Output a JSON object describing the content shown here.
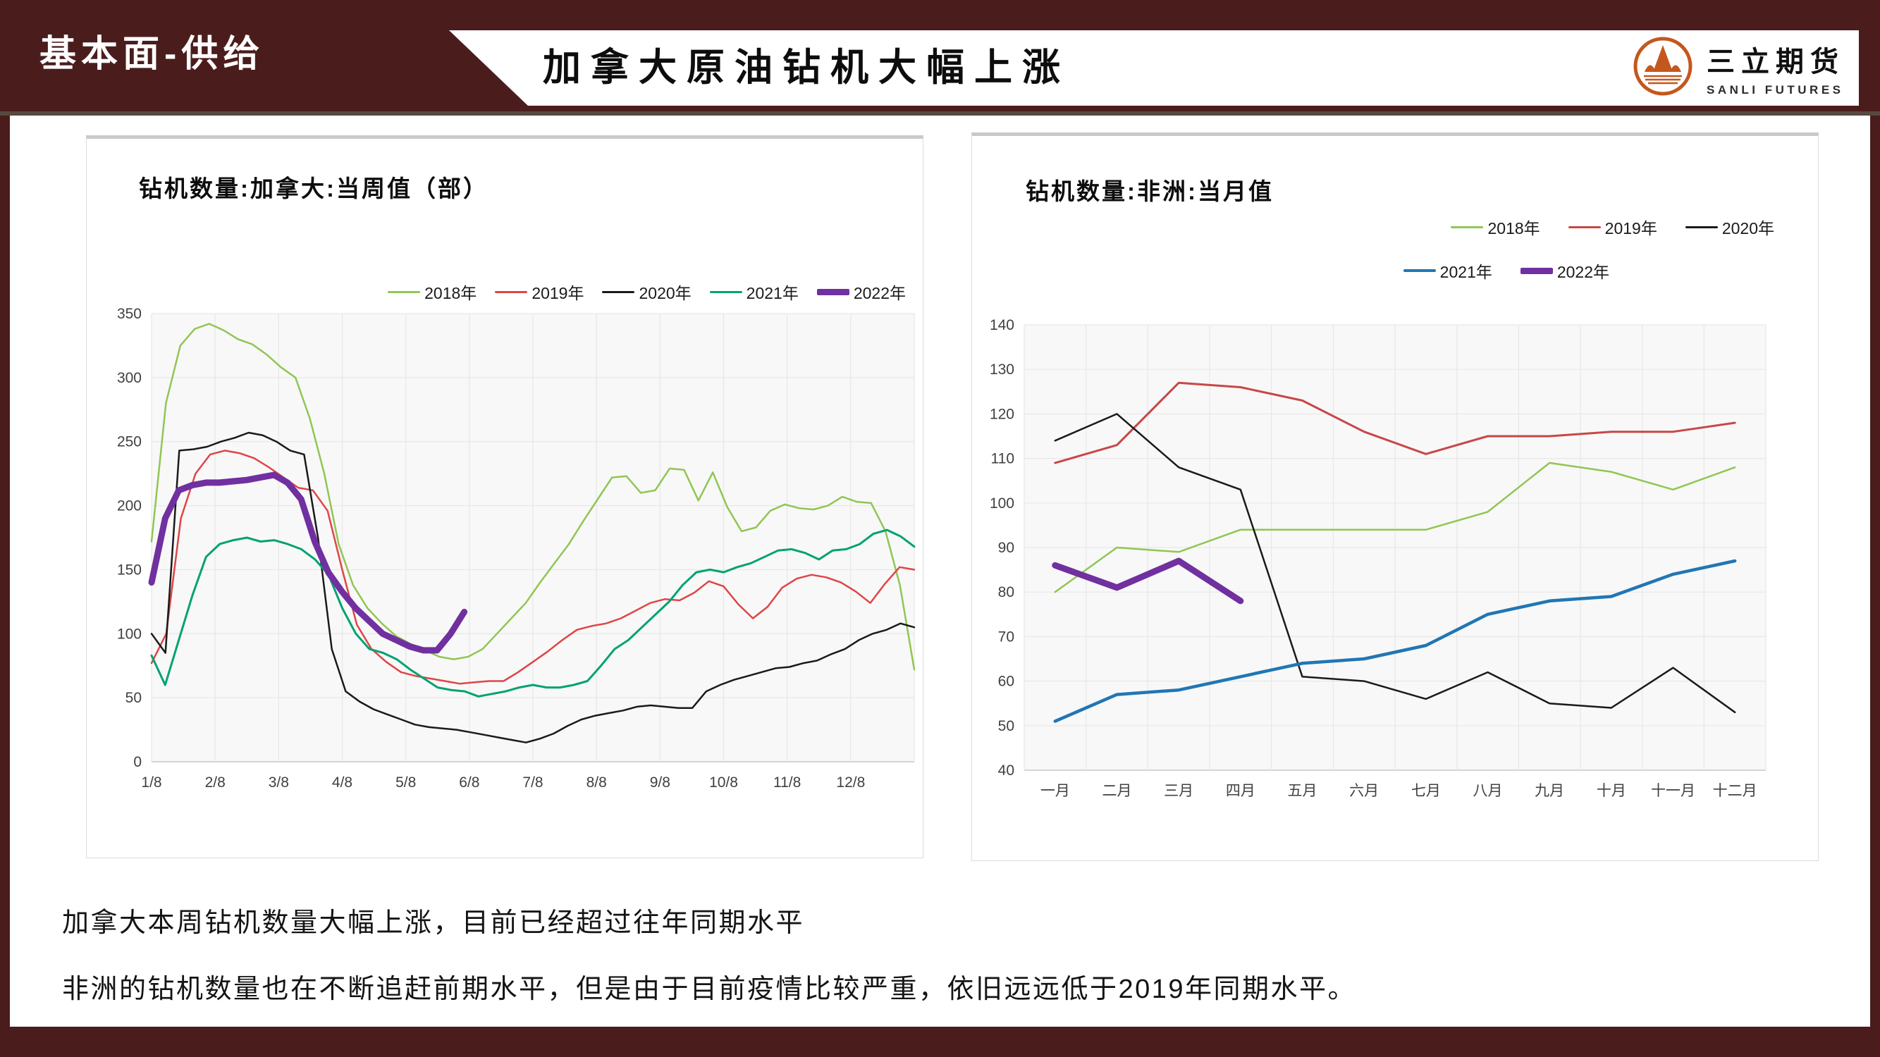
{
  "header": {
    "section_label": "基本面-供给",
    "title": "加拿大原油钻机大幅上涨",
    "logo": {
      "company_cn": "三立期货",
      "company_en": "SANLI FUTURES",
      "icon": "mountain-circle-icon",
      "accent_color": "#C4571E"
    }
  },
  "colors": {
    "banner_maroon": "#4A1D1C",
    "divider": "#584840",
    "plot_bg": "#f8f8f8",
    "gridline": "#e7e7e7",
    "axis_text": "#404040"
  },
  "chart_data": [
    {
      "id": "canada",
      "type": "line",
      "title": "钻机数量:加拿大:当周值（部）",
      "x_unit": "week",
      "x_tick_labels": [
        "1/8",
        "2/8",
        "3/8",
        "4/8",
        "5/8",
        "6/8",
        "7/8",
        "8/8",
        "9/8",
        "10/8",
        "11/8",
        "12/8"
      ],
      "ylim": [
        0,
        350
      ],
      "y_step": 50,
      "grid": true,
      "legend_position": "top-right-row",
      "series": [
        {
          "name": "2018年",
          "color": "#90C653",
          "width": 2.5,
          "span": 1,
          "values": [
            172,
            280,
            325,
            338,
            342,
            337,
            330,
            326,
            318,
            308,
            300,
            268,
            225,
            170,
            138,
            120,
            108,
            98,
            92,
            87,
            82,
            80,
            82,
            88,
            100,
            112,
            124,
            140,
            155,
            170,
            188,
            205,
            222,
            223,
            210,
            212,
            229,
            228,
            204,
            226,
            199,
            180,
            183,
            196,
            201,
            198,
            197,
            200,
            207,
            203,
            202,
            180,
            138,
            72
          ]
        },
        {
          "name": "2019年",
          "color": "#DF4545",
          "width": 2.5,
          "span": 1,
          "values": [
            77,
            100,
            190,
            225,
            240,
            243,
            241,
            237,
            230,
            222,
            214,
            212,
            196,
            150,
            107,
            88,
            78,
            70,
            67,
            65,
            63,
            61,
            62,
            63,
            63,
            70,
            78,
            86,
            95,
            103,
            106,
            108,
            112,
            118,
            124,
            127,
            126,
            132,
            141,
            137,
            123,
            112,
            121,
            136,
            143,
            146,
            144,
            140,
            133,
            124,
            139,
            152,
            150
          ]
        },
        {
          "name": "2020年",
          "color": "#1A1A1A",
          "width": 2.5,
          "span": 1,
          "values": [
            100,
            85,
            243,
            244,
            246,
            250,
            253,
            257,
            255,
            250,
            243,
            240,
            175,
            88,
            55,
            47,
            41,
            37,
            33,
            29,
            27,
            26,
            25,
            23,
            21,
            19,
            17,
            15,
            18,
            22,
            28,
            33,
            36,
            38,
            40,
            43,
            44,
            43,
            42,
            42,
            55,
            60,
            64,
            67,
            70,
            73,
            74,
            77,
            79,
            84,
            88,
            95,
            100,
            103,
            108,
            105
          ]
        },
        {
          "name": "2021年",
          "color": "#00A273",
          "width": 3,
          "span": 1,
          "values": [
            83,
            60,
            95,
            130,
            160,
            170,
            173,
            175,
            172,
            173,
            170,
            166,
            158,
            146,
            120,
            100,
            88,
            85,
            80,
            72,
            65,
            58,
            56,
            55,
            51,
            53,
            55,
            58,
            60,
            58,
            58,
            60,
            63,
            75,
            88,
            95,
            105,
            115,
            125,
            138,
            148,
            150,
            148,
            152,
            155,
            160,
            165,
            166,
            163,
            158,
            165,
            166,
            170,
            178,
            181,
            176,
            168
          ]
        },
        {
          "name": "2022年",
          "color": "#7030A0",
          "width": 9,
          "span": 0.41,
          "values": [
            140,
            190,
            212,
            216,
            218,
            218,
            219,
            220,
            222,
            224,
            218,
            205,
            172,
            148,
            133,
            120,
            110,
            100,
            95,
            90,
            87,
            87,
            100,
            117
          ]
        }
      ]
    },
    {
      "id": "africa",
      "type": "line",
      "title": "钻机数量:非洲:当月值",
      "x_unit": "month",
      "categories": [
        "一月",
        "二月",
        "三月",
        "四月",
        "五月",
        "六月",
        "七月",
        "八月",
        "九月",
        "十月",
        "十一月",
        "十二月"
      ],
      "ylim": [
        40,
        140
      ],
      "y_step": 10,
      "grid": true,
      "legend_position": "top-right-two-rows",
      "legend_rows": [
        [
          "2018年",
          "2019年",
          "2020年"
        ],
        [
          "2021年",
          "2022年"
        ]
      ],
      "series": [
        {
          "name": "2018年",
          "color": "#90C653",
          "width": 2.5,
          "values": [
            80,
            90,
            89,
            94,
            94,
            94,
            94,
            98,
            109,
            107,
            103,
            108
          ]
        },
        {
          "name": "2019年",
          "color": "#C84747",
          "width": 3,
          "values": [
            109,
            113,
            127,
            126,
            123,
            116,
            111,
            115,
            115,
            116,
            116,
            118
          ]
        },
        {
          "name": "2020年",
          "color": "#1A1A1A",
          "width": 2.5,
          "values": [
            114,
            120,
            108,
            103,
            61,
            60,
            56,
            62,
            55,
            54,
            63,
            53
          ]
        },
        {
          "name": "2021年",
          "color": "#2176B5",
          "width": 4.5,
          "values": [
            51,
            57,
            58,
            61,
            64,
            65,
            68,
            75,
            78,
            79,
            84,
            87
          ]
        },
        {
          "name": "2022年",
          "color": "#7030A0",
          "width": 9,
          "values": [
            86,
            81,
            87,
            78
          ]
        }
      ]
    }
  ],
  "commentary": {
    "line1": "加拿大本周钻机数量大幅上涨，目前已经超过往年同期水平",
    "line2": "非洲的钻机数量也在不断追赶前期水平，但是由于目前疫情比较严重，依旧远远低于2019年同期水平。"
  }
}
